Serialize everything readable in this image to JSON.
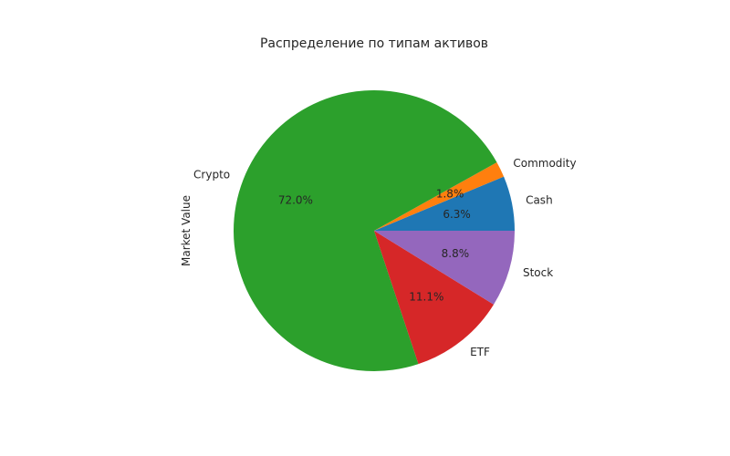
{
  "chart_data": {
    "type": "pie",
    "title": "Распределение по типам активов",
    "ylabel": "Market Value",
    "start_angle": 0,
    "counterclock": true,
    "slices": [
      {
        "label": "Cash",
        "value": 6.3,
        "pct_label": "6.3%",
        "color": "#1f77b4"
      },
      {
        "label": "Commodity",
        "value": 1.8,
        "pct_label": "1.8%",
        "color": "#ff7f0e"
      },
      {
        "label": "Crypto",
        "value": 72.0,
        "pct_label": "72.0%",
        "color": "#2ca02c"
      },
      {
        "label": "ETF",
        "value": 11.1,
        "pct_label": "11.1%",
        "color": "#d62728"
      },
      {
        "label": "Stock",
        "value": 8.8,
        "pct_label": "8.8%",
        "color": "#9467bd"
      }
    ]
  }
}
